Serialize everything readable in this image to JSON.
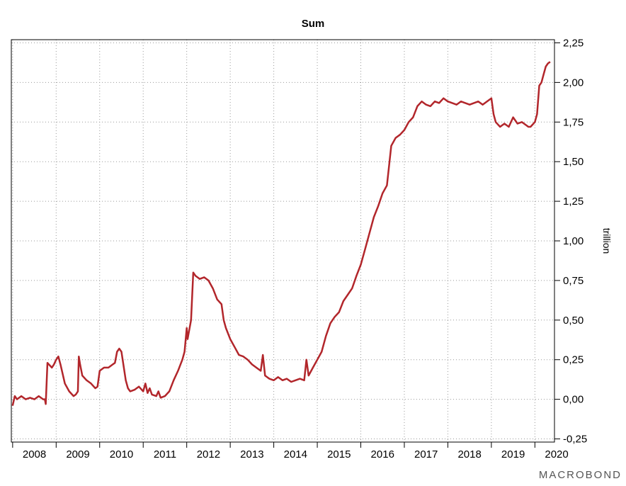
{
  "chart_data": {
    "type": "line",
    "title": "Sum",
    "ylabel": "trillion",
    "xlabel": "",
    "ylim": [
      -0.27,
      2.27
    ],
    "xlim": [
      2007.97,
      2020.45
    ],
    "grid": true,
    "y_axis_side": "right",
    "line_color": "#b2262b",
    "yticks": [
      {
        "value": -0.25,
        "label": "-0,25"
      },
      {
        "value": 0.0,
        "label": "0,00"
      },
      {
        "value": 0.25,
        "label": "0,25"
      },
      {
        "value": 0.5,
        "label": "0,50"
      },
      {
        "value": 0.75,
        "label": "0,75"
      },
      {
        "value": 1.0,
        "label": "1,00"
      },
      {
        "value": 1.25,
        "label": "1,25"
      },
      {
        "value": 1.5,
        "label": "1,50"
      },
      {
        "value": 1.75,
        "label": "1,75"
      },
      {
        "value": 2.0,
        "label": "2,00"
      },
      {
        "value": 2.25,
        "label": "2,25"
      }
    ],
    "xticks": [
      "2008",
      "2009",
      "2010",
      "2011",
      "2012",
      "2013",
      "2014",
      "2015",
      "2016",
      "2017",
      "2018",
      "2019",
      "2020"
    ],
    "series": [
      {
        "x": [
          2008.0,
          2008.05,
          2008.1,
          2008.2,
          2008.3,
          2008.4,
          2008.5,
          2008.6,
          2008.7,
          2008.74,
          2008.76,
          2008.8,
          2008.9,
          2008.95,
          2009.0,
          2009.05,
          2009.1,
          2009.2,
          2009.3,
          2009.4,
          2009.45,
          2009.5,
          2009.52,
          2009.55,
          2009.6,
          2009.7,
          2009.8,
          2009.9,
          2009.95,
          2010.0,
          2010.1,
          2010.2,
          2010.3,
          2010.35,
          2010.4,
          2010.45,
          2010.5,
          2010.6,
          2010.65,
          2010.7,
          2010.8,
          2010.9,
          2011.0,
          2011.05,
          2011.1,
          2011.15,
          2011.2,
          2011.3,
          2011.35,
          2011.4,
          2011.5,
          2011.6,
          2011.7,
          2011.8,
          2011.9,
          2011.95,
          2012.0,
          2012.02,
          2012.1,
          2012.15,
          2012.2,
          2012.3,
          2012.4,
          2012.5,
          2012.6,
          2012.7,
          2012.8,
          2012.85,
          2012.9,
          2013.0,
          2013.1,
          2013.2,
          2013.3,
          2013.4,
          2013.5,
          2013.6,
          2013.7,
          2013.75,
          2013.8,
          2013.9,
          2014.0,
          2014.1,
          2014.2,
          2014.3,
          2014.4,
          2014.5,
          2014.6,
          2014.7,
          2014.75,
          2014.8,
          2014.9,
          2015.0,
          2015.1,
          2015.2,
          2015.3,
          2015.4,
          2015.5,
          2015.6,
          2015.7,
          2015.8,
          2015.9,
          2016.0,
          2016.1,
          2016.2,
          2016.3,
          2016.4,
          2016.5,
          2016.6,
          2016.7,
          2016.8,
          2016.9,
          2017.0,
          2017.1,
          2017.2,
          2017.3,
          2017.4,
          2017.5,
          2017.6,
          2017.7,
          2017.8,
          2017.9,
          2018.0,
          2018.1,
          2018.2,
          2018.3,
          2018.4,
          2018.5,
          2018.6,
          2018.7,
          2018.8,
          2018.9,
          2019.0,
          2019.05,
          2019.1,
          2019.2,
          2019.3,
          2019.4,
          2019.5,
          2019.6,
          2019.7,
          2019.8,
          2019.85,
          2019.9,
          2020.0,
          2020.05,
          2020.1,
          2020.15,
          2020.2,
          2020.25,
          2020.3,
          2020.35
        ],
        "y": [
          -0.04,
          0.02,
          0.0,
          0.02,
          0.0,
          0.01,
          0.0,
          0.02,
          0.0,
          0.0,
          -0.03,
          0.23,
          0.2,
          0.22,
          0.25,
          0.27,
          0.22,
          0.1,
          0.05,
          0.02,
          0.03,
          0.05,
          0.27,
          0.22,
          0.15,
          0.12,
          0.1,
          0.07,
          0.08,
          0.18,
          0.2,
          0.2,
          0.22,
          0.23,
          0.3,
          0.32,
          0.3,
          0.12,
          0.07,
          0.05,
          0.06,
          0.08,
          0.05,
          0.1,
          0.04,
          0.07,
          0.03,
          0.02,
          0.05,
          0.01,
          0.02,
          0.05,
          0.12,
          0.18,
          0.25,
          0.3,
          0.45,
          0.38,
          0.5,
          0.8,
          0.78,
          0.76,
          0.77,
          0.75,
          0.7,
          0.63,
          0.6,
          0.5,
          0.45,
          0.38,
          0.33,
          0.28,
          0.27,
          0.25,
          0.22,
          0.2,
          0.18,
          0.28,
          0.15,
          0.13,
          0.12,
          0.14,
          0.12,
          0.13,
          0.11,
          0.12,
          0.13,
          0.12,
          0.25,
          0.15,
          0.2,
          0.25,
          0.3,
          0.4,
          0.48,
          0.52,
          0.55,
          0.62,
          0.66,
          0.7,
          0.78,
          0.85,
          0.95,
          1.05,
          1.15,
          1.22,
          1.3,
          1.35,
          1.6,
          1.65,
          1.67,
          1.7,
          1.75,
          1.78,
          1.85,
          1.88,
          1.86,
          1.85,
          1.88,
          1.87,
          1.9,
          1.88,
          1.87,
          1.86,
          1.88,
          1.87,
          1.86,
          1.87,
          1.88,
          1.86,
          1.88,
          1.9,
          1.8,
          1.75,
          1.72,
          1.74,
          1.72,
          1.78,
          1.74,
          1.75,
          1.73,
          1.72,
          1.72,
          1.75,
          1.8,
          1.98,
          2.0,
          2.05,
          2.1,
          2.12,
          2.13
        ]
      }
    ]
  },
  "brand": "MACROBOND"
}
